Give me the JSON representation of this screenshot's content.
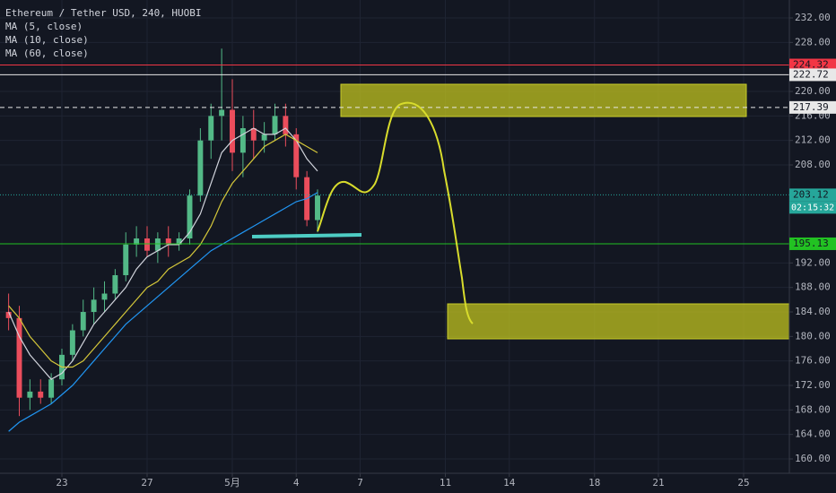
{
  "chart_data": {
    "type": "candlestick",
    "title": "Ethereum / Tether USD, 240, HUOBI",
    "x": [
      -2.5,
      -2,
      -1.5,
      -1,
      -0.5,
      0,
      0.5,
      1,
      1.5,
      2,
      2.5,
      3,
      3.5,
      4,
      4.5,
      5,
      5.5,
      6,
      6.5,
      7,
      7.5,
      8,
      8.5,
      9,
      9.5,
      10,
      10.5,
      11,
      11.5,
      12
    ],
    "candles": {
      "open": [
        184,
        183,
        170,
        171,
        170,
        173,
        177,
        181,
        184,
        186,
        187,
        190,
        195,
        196,
        194,
        196,
        195,
        196,
        203,
        212,
        216,
        217,
        210,
        214,
        212,
        213,
        216,
        213,
        206,
        199
      ],
      "high": [
        187,
        185,
        173,
        173,
        174,
        178,
        182,
        186,
        188,
        189,
        191,
        197,
        198,
        198,
        197,
        198,
        197,
        204,
        214,
        218,
        227,
        222,
        216,
        217,
        215,
        218,
        218,
        214,
        207,
        204
      ],
      "low": [
        181,
        167,
        168,
        169,
        169,
        172,
        176,
        180,
        182,
        184,
        186,
        189,
        193,
        193,
        192,
        193,
        194,
        195,
        202,
        209,
        212,
        207,
        206,
        209,
        210,
        212,
        211,
        204,
        198,
        197
      ],
      "close": [
        183,
        170,
        171,
        170,
        173,
        177,
        181,
        184,
        186,
        187,
        190,
        195,
        196,
        194,
        196,
        195,
        196,
        203,
        212,
        216,
        217,
        210,
        214,
        212,
        213,
        216,
        213,
        206,
        199,
        203
      ],
      "up_color": "#53b987",
      "down_color": "#eb4d5c"
    },
    "series": [
      {
        "name": "MA (5, close)",
        "color": "#d1d4dc",
        "values": [
          184,
          180,
          177,
          175,
          173,
          174,
          176,
          179,
          182,
          184,
          186,
          188,
          191,
          193,
          194,
          195,
          195,
          197,
          200,
          205,
          210,
          212,
          213,
          214,
          213,
          213,
          214,
          212,
          209,
          207
        ]
      },
      {
        "name": "MA (10, close)",
        "color": "#d4c73a",
        "values": [
          185,
          183,
          180,
          178,
          176,
          175,
          175,
          176,
          178,
          180,
          182,
          184,
          186,
          188,
          189,
          191,
          192,
          193,
          195,
          198,
          202,
          205,
          207,
          209,
          211,
          212,
          213,
          212,
          211,
          210
        ]
      },
      {
        "name": "MA (60, close)",
        "color": "#2196f3",
        "values": [
          164.5,
          166,
          167,
          168,
          169,
          170.5,
          172,
          174,
          176,
          178,
          180,
          182,
          183.5,
          185,
          186.5,
          188,
          189.5,
          191,
          192.5,
          194,
          195,
          196,
          197,
          198,
          199,
          200,
          201,
          202,
          202.5,
          203.5
        ]
      }
    ],
    "levels": [
      {
        "value": 224.32,
        "color": "#f23645",
        "style": "solid"
      },
      {
        "value": 222.72,
        "color": "#e8e8e8",
        "style": "solid"
      },
      {
        "value": 217.39,
        "color": "#e8e8e8",
        "style": "dashed"
      },
      {
        "value": 203.12,
        "color": "#26a69a",
        "style": "dotted"
      },
      {
        "value": 195.13,
        "color": "#22c222",
        "style": "solid"
      }
    ],
    "countdown": "02:15:32",
    "xlim": [
      -2.905,
      34.147
    ],
    "xticks": [
      {
        "value": 0,
        "label": "23"
      },
      {
        "value": 4,
        "label": "27"
      },
      {
        "value": 8,
        "label": "5月"
      },
      {
        "value": 11,
        "label": "4"
      },
      {
        "value": 14,
        "label": "7"
      },
      {
        "value": 18,
        "label": "11"
      },
      {
        "value": 21,
        "label": "14"
      },
      {
        "value": 25,
        "label": "18"
      },
      {
        "value": 28,
        "label": "21"
      },
      {
        "value": 32,
        "label": "25"
      }
    ],
    "ylim": [
      157.66,
      234.93
    ],
    "yticks": [
      {
        "value": 160,
        "label": "160.00"
      },
      {
        "value": 164,
        "label": "164.00"
      },
      {
        "value": 168,
        "label": "168.00"
      },
      {
        "value": 172,
        "label": "172.00"
      },
      {
        "value": 176,
        "label": "176.00"
      },
      {
        "value": 180,
        "label": "180.00"
      },
      {
        "value": 184,
        "label": "184.00"
      },
      {
        "value": 188,
        "label": "188.00"
      },
      {
        "value": 192,
        "label": "192.00"
      },
      {
        "value": 208,
        "label": "208.00"
      },
      {
        "value": 212,
        "label": "212.00"
      },
      {
        "value": 216,
        "label": "216.00"
      },
      {
        "value": 220,
        "label": "220.00"
      },
      {
        "value": 228,
        "label": "228.00"
      },
      {
        "value": 232,
        "label": "232.00"
      }
    ],
    "grid": true
  }
}
